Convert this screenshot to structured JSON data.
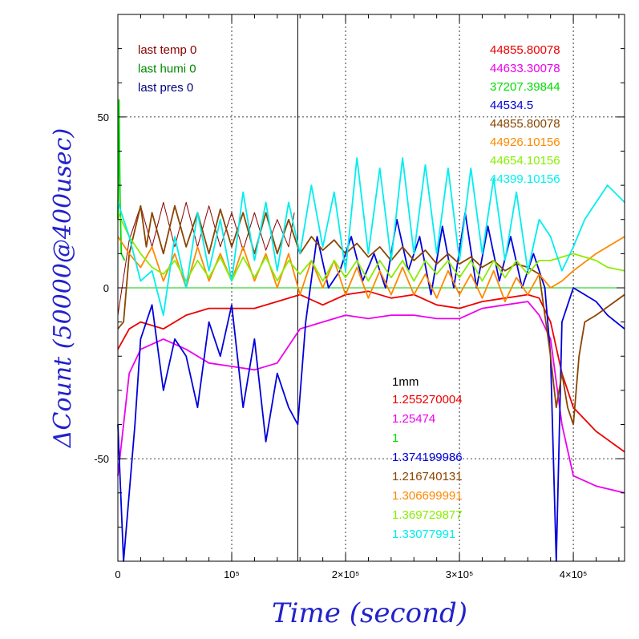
{
  "chart_data": {
    "type": "line",
    "xlabel": "Time (second)",
    "ylabel": "ΔCount (50000@400usec)",
    "xlim": [
      0,
      445000
    ],
    "ylim": [
      -80,
      80
    ],
    "x_ticks": [
      {
        "value": 0,
        "label": "0"
      },
      {
        "value": 100000,
        "label": "10⁵"
      },
      {
        "value": 200000,
        "label": "2×10⁵"
      },
      {
        "value": 300000,
        "label": "3×10⁵"
      },
      {
        "value": 400000,
        "label": "4×10⁵"
      }
    ],
    "y_ticks": [
      {
        "value": 50,
        "label": "50"
      },
      {
        "value": 0,
        "label": "0"
      },
      {
        "value": -50,
        "label": "-50"
      }
    ],
    "grid": true,
    "zero_line_color": "#00cc00",
    "vertical_marker_x": 158000,
    "legend_left": [
      {
        "text": "last temp 0",
        "color": "#8b0000"
      },
      {
        "text": "last humi 0",
        "color": "#008800"
      },
      {
        "text": "last pres 0",
        "color": "#000080"
      }
    ],
    "legend_right": [
      {
        "text": "44855.80078",
        "color": "#ee0000"
      },
      {
        "text": "44633.30078",
        "color": "#ee00ee"
      },
      {
        "text": "37207.39844",
        "color": "#00dd00"
      },
      {
        "text": "44534.5",
        "color": "#0000dd"
      },
      {
        "text": "44855.80078",
        "color": "#8b4500"
      },
      {
        "text": "44926.10156",
        "color": "#ff8800"
      },
      {
        "text": "44654.10156",
        "color": "#88ee00"
      },
      {
        "text": "44399.10156",
        "color": "#00eeee"
      }
    ],
    "legend_scale_title": {
      "text": "1mm",
      "color": "#000000"
    },
    "legend_scale": [
      {
        "text": "1.255270004",
        "color": "#ee0000"
      },
      {
        "text": "1.25474",
        "color": "#ee00ee"
      },
      {
        "text": "1",
        "color": "#00dd00"
      },
      {
        "text": "1.374199986",
        "color": "#0000dd"
      },
      {
        "text": "1.216740131",
        "color": "#8b4500"
      },
      {
        "text": "1.306699991",
        "color": "#ff8800"
      },
      {
        "text": "1.369729877",
        "color": "#88ee00"
      },
      {
        "text": "1.33077991",
        "color": "#00eeee"
      }
    ],
    "series": [
      {
        "color": "#8b0000",
        "x": [
          0,
          10000,
          20000,
          30000,
          40000,
          50000,
          60000,
          70000,
          80000,
          90000,
          100000,
          110000,
          120000,
          130000,
          140000,
          150000,
          155000
        ],
        "y": [
          -8,
          14,
          24,
          12,
          25,
          12,
          25,
          12,
          24,
          12,
          22,
          11,
          22,
          11,
          20,
          12,
          22
        ]
      },
      {
        "color": "#ee0000",
        "x": [
          0,
          10000,
          20000,
          40000,
          60000,
          80000,
          100000,
          120000,
          140000,
          160000,
          180000,
          200000,
          220000,
          240000,
          260000,
          280000,
          300000,
          320000,
          340000,
          360000,
          370000,
          380000,
          390000,
          400000,
          420000,
          445000
        ],
        "y": [
          -18,
          -12,
          -10,
          -12,
          -8,
          -6,
          -6,
          -6,
          -4,
          -2,
          -5,
          -2,
          -1,
          -3,
          -2,
          -5,
          -6,
          -4,
          -3,
          -2,
          -3,
          -10,
          -25,
          -35,
          -42,
          -48
        ]
      },
      {
        "color": "#ee00ee",
        "x": [
          0,
          5000,
          10000,
          20000,
          40000,
          60000,
          80000,
          100000,
          120000,
          140000,
          160000,
          180000,
          200000,
          220000,
          240000,
          260000,
          280000,
          300000,
          320000,
          340000,
          360000,
          370000,
          380000,
          390000,
          400000,
          420000,
          445000
        ],
        "y": [
          -55,
          -40,
          -25,
          -18,
          -15,
          -18,
          -22,
          -23,
          -24,
          -22,
          -12,
          -10,
          -8,
          -9,
          -8,
          -8,
          -9,
          -9,
          -6,
          -5,
          -4,
          -8,
          -15,
          -40,
          -55,
          -58,
          -60
        ]
      },
      {
        "color": "#00dd00",
        "x": [
          0,
          1000,
          2000,
          3000,
          6000
        ],
        "y": [
          20,
          55,
          25,
          10,
          8
        ]
      },
      {
        "color": "#0000dd",
        "x": [
          0,
          5000,
          10000,
          15000,
          20000,
          30000,
          40000,
          50000,
          60000,
          70000,
          80000,
          90000,
          100000,
          110000,
          120000,
          130000,
          140000,
          150000,
          158000,
          165000,
          175000,
          185000,
          195000,
          205000,
          215000,
          225000,
          235000,
          245000,
          255000,
          265000,
          275000,
          285000,
          295000,
          305000,
          315000,
          325000,
          335000,
          345000,
          355000,
          365000,
          375000,
          380000,
          385000,
          390000,
          395000,
          400000,
          410000,
          420000,
          430000,
          445000
        ],
        "y": [
          -40,
          -80,
          -60,
          -40,
          -15,
          -5,
          -30,
          -15,
          -20,
          -35,
          -10,
          -20,
          -5,
          -35,
          -15,
          -45,
          -25,
          -35,
          -40,
          -10,
          15,
          0,
          5,
          15,
          2,
          10,
          0,
          20,
          5,
          15,
          -2,
          18,
          0,
          22,
          0,
          18,
          2,
          15,
          0,
          10,
          0,
          -20,
          -80,
          -10,
          -5,
          0,
          -2,
          -4,
          -8,
          -12
        ]
      },
      {
        "color": "#8b4500",
        "x": [
          0,
          5000,
          10000,
          20000,
          25000,
          30000,
          40000,
          50000,
          60000,
          70000,
          80000,
          90000,
          100000,
          110000,
          120000,
          130000,
          140000,
          150000,
          160000,
          170000,
          180000,
          190000,
          200000,
          210000,
          220000,
          230000,
          240000,
          250000,
          260000,
          270000,
          280000,
          290000,
          300000,
          310000,
          320000,
          330000,
          340000,
          350000,
          360000,
          370000,
          380000,
          385000,
          390000,
          395000,
          400000,
          405000,
          410000,
          420000,
          445000
        ],
        "y": [
          -12,
          -10,
          10,
          24,
          12,
          22,
          10,
          24,
          12,
          22,
          10,
          23,
          12,
          22,
          10,
          22,
          10,
          20,
          10,
          15,
          11,
          14,
          10,
          13,
          9,
          12,
          8,
          12,
          8,
          11,
          7,
          10,
          7,
          9,
          6,
          8,
          5,
          7,
          6,
          4,
          -20,
          -35,
          -25,
          -35,
          -40,
          -20,
          -10,
          -8,
          -2
        ]
      },
      {
        "color": "#ff8800",
        "x": [
          0,
          10000,
          20000,
          30000,
          40000,
          50000,
          60000,
          70000,
          80000,
          90000,
          100000,
          110000,
          120000,
          130000,
          140000,
          150000,
          160000,
          170000,
          180000,
          190000,
          200000,
          210000,
          220000,
          230000,
          240000,
          250000,
          260000,
          270000,
          280000,
          290000,
          300000,
          310000,
          320000,
          330000,
          340000,
          350000,
          360000,
          370000,
          380000,
          390000,
          400000,
          420000,
          445000
        ],
        "y": [
          15,
          10,
          6,
          12,
          2,
          10,
          0,
          12,
          2,
          10,
          2,
          12,
          2,
          10,
          0,
          10,
          -2,
          8,
          0,
          8,
          -2,
          6,
          -3,
          5,
          -2,
          6,
          -2,
          4,
          -3,
          5,
          -2,
          4,
          -3,
          5,
          -4,
          3,
          -2,
          4,
          0,
          2,
          5,
          10,
          15
        ]
      },
      {
        "color": "#88ee00",
        "x": [
          0,
          10000,
          20000,
          30000,
          40000,
          50000,
          60000,
          70000,
          80000,
          90000,
          100000,
          110000,
          120000,
          130000,
          140000,
          150000,
          160000,
          170000,
          180000,
          190000,
          200000,
          210000,
          220000,
          230000,
          240000,
          250000,
          260000,
          270000,
          280000,
          290000,
          300000,
          310000,
          320000,
          330000,
          340000,
          350000,
          360000,
          370000,
          380000,
          390000,
          400000,
          410000,
          420000,
          430000,
          445000
        ],
        "y": [
          22,
          15,
          10,
          6,
          4,
          8,
          2,
          8,
          3,
          9,
          2,
          9,
          3,
          9,
          2,
          8,
          4,
          8,
          2,
          8,
          3,
          8,
          2,
          8,
          3,
          8,
          2,
          8,
          4,
          8,
          3,
          8,
          2,
          8,
          3,
          8,
          4,
          8,
          8,
          9,
          10,
          9,
          8,
          6,
          5
        ]
      },
      {
        "color": "#00eeee",
        "x": [
          0,
          10000,
          20000,
          30000,
          40000,
          50000,
          60000,
          70000,
          80000,
          90000,
          100000,
          110000,
          120000,
          130000,
          140000,
          150000,
          160000,
          170000,
          180000,
          190000,
          200000,
          210000,
          220000,
          230000,
          240000,
          250000,
          260000,
          270000,
          280000,
          290000,
          300000,
          310000,
          320000,
          330000,
          340000,
          350000,
          360000,
          370000,
          380000,
          390000,
          400000,
          410000,
          420000,
          430000,
          445000
        ],
        "y": [
          25,
          15,
          2,
          5,
          -8,
          15,
          0,
          22,
          5,
          20,
          2,
          28,
          8,
          25,
          5,
          25,
          10,
          30,
          12,
          28,
          5,
          38,
          10,
          35,
          8,
          38,
          10,
          36,
          10,
          35,
          8,
          35,
          10,
          32,
          8,
          28,
          5,
          20,
          15,
          5,
          12,
          20,
          25,
          30,
          25
        ]
      }
    ]
  }
}
